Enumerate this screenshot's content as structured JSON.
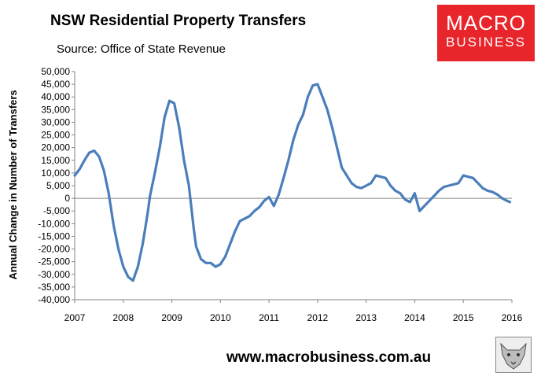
{
  "header": {
    "title": "NSW Residential Property Transfers",
    "subtitle": "Source: Office of State Revenue"
  },
  "logo": {
    "line1": "MACRO",
    "line2": "BUSINESS",
    "color": "#e8252a"
  },
  "footer": {
    "url": "www.macrobusiness.com.au"
  },
  "chart_data": {
    "type": "line",
    "ylabel": "Annual Change in Number of Transfers",
    "xlabel": "",
    "ylim": [
      -40000,
      50000
    ],
    "xlim": [
      2007,
      2016
    ],
    "y_ticks": [
      "50,000",
      "45,000",
      "40,000",
      "35,000",
      "30,000",
      "25,000",
      "20,000",
      "15,000",
      "10,000",
      "5,000",
      "0",
      "-5,000",
      "-10,000",
      "-15,000",
      "-20,000",
      "-25,000",
      "-30,000",
      "-35,000",
      "-40,000"
    ],
    "x_ticks": [
      "2007",
      "2008",
      "2009",
      "2010",
      "2011",
      "2012",
      "2013",
      "2014",
      "2015",
      "2016"
    ],
    "grid": false,
    "series": [
      {
        "color": "#4a7ebb",
        "x": [
          2007.0,
          2007.1,
          2007.2,
          2007.3,
          2007.4,
          2007.5,
          2007.6,
          2007.7,
          2007.8,
          2007.9,
          2008.0,
          2008.1,
          2008.2,
          2008.3,
          2008.4,
          2008.5,
          2008.55,
          2008.65,
          2008.75,
          2008.85,
          2008.95,
          2009.05,
          2009.15,
          2009.25,
          2009.35,
          2009.45,
          2009.5,
          2009.6,
          2009.7,
          2009.8,
          2009.9,
          2010.0,
          2010.1,
          2010.2,
          2010.3,
          2010.4,
          2010.5,
          2010.6,
          2010.7,
          2010.8,
          2010.9,
          2011.0,
          2011.1,
          2011.2,
          2011.3,
          2011.4,
          2011.5,
          2011.6,
          2011.7,
          2011.8,
          2011.9,
          2012.0,
          2012.1,
          2012.2,
          2012.3,
          2012.4,
          2012.5,
          2012.6,
          2012.7,
          2012.8,
          2012.9,
          2013.0,
          2013.1,
          2013.2,
          2013.3,
          2013.4,
          2013.5,
          2013.6,
          2013.7,
          2013.8,
          2013.9,
          2014.0,
          2014.1,
          2014.2,
          2014.3,
          2014.4,
          2014.5,
          2014.6,
          2014.7,
          2014.8,
          2014.9,
          2015.0,
          2015.1,
          2015.2,
          2015.3,
          2015.4,
          2015.5,
          2015.6,
          2015.7,
          2015.8,
          2015.9,
          2015.96
        ],
        "values": [
          9000,
          11500,
          15000,
          18000,
          18800,
          16500,
          11000,
          2000,
          -10500,
          -20000,
          -27000,
          -31000,
          -32500,
          -27000,
          -18000,
          -6000,
          1000,
          10000,
          20000,
          32000,
          38500,
          37500,
          28000,
          15000,
          5000,
          -12000,
          -19000,
          -24000,
          -25500,
          -25500,
          -27000,
          -26000,
          -23000,
          -18000,
          -13000,
          -9000,
          -8000,
          -7000,
          -5000,
          -3500,
          -1000,
          500,
          -3000,
          1500,
          8000,
          15000,
          23000,
          29000,
          33000,
          40000,
          44500,
          45000,
          40000,
          35000,
          28000,
          20000,
          12000,
          9000,
          6000,
          4500,
          4000,
          5000,
          6000,
          9000,
          8500,
          8000,
          5000,
          3000,
          2000,
          -500,
          -1500,
          2000,
          -5000,
          -3000,
          -1000,
          1000,
          3000,
          4500,
          5000,
          5500,
          6000,
          9000,
          8500,
          8000,
          6000,
          4000,
          3000,
          2500,
          1500,
          0,
          -1000,
          -1500
        ],
        "name": ""
      }
    ]
  }
}
